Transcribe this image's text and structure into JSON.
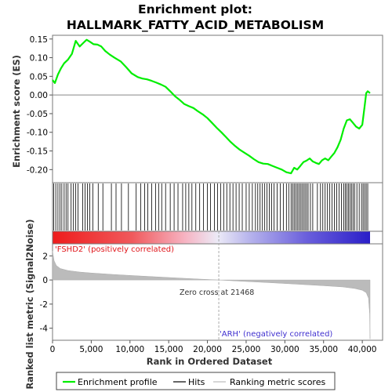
{
  "chart_data": {
    "type": "line",
    "title_line1": "Enrichment plot:",
    "title_line2": "HALLMARK_FATTY_ACID_METABOLISM",
    "ylabel_top": "Enrichment score (ES)",
    "ylabel_bottom": "Ranked list metric (Signal2Noise)",
    "xlabel": "Rank in Ordered Dataset",
    "x_range": [
      0,
      41000
    ],
    "es_ylim": [
      -0.235,
      0.16
    ],
    "metric_ylim": [
      -5.0,
      3.0
    ],
    "x_ticks": [
      0,
      5000,
      10000,
      15000,
      20000,
      25000,
      30000,
      35000,
      40000
    ],
    "x_tick_labels": [
      "0",
      "5,000",
      "10,000",
      "15,000",
      "20,000",
      "25,000",
      "30,000",
      "35,000",
      "40,000"
    ],
    "es_y_ticks": [
      0.15,
      0.1,
      0.05,
      0.0,
      -0.05,
      -0.1,
      -0.15,
      -0.2
    ],
    "es_y_tick_labels": [
      "0.15",
      "0.10",
      "0.05",
      "0.00",
      "-0.05",
      "-0.10",
      "-0.15",
      "-0.20"
    ],
    "metric_y_ticks": [
      2,
      0,
      -2,
      -4
    ],
    "metric_y_tick_labels": [
      "2",
      "0",
      "-2",
      "-4"
    ],
    "positive_label": "'FSHD2' (positively correlated)",
    "negative_label": "'ARH' (negatively correlated)",
    "zero_cross_label": "Zero cross at 21468",
    "zero_cross_rank": 21468,
    "legend": [
      {
        "key": "es",
        "label": "Enrichment profile",
        "color": "#00ee00"
      },
      {
        "key": "hits",
        "label": "Hits",
        "color": "#000000"
      },
      {
        "key": "metric",
        "label": "Ranking metric scores",
        "color": "#bbbbbb"
      }
    ],
    "series": [
      {
        "key": "es",
        "color": "#00ee00",
        "x": [
          0,
          300,
          700,
          1100,
          1500,
          2000,
          2500,
          3000,
          3500,
          4000,
          4400,
          4800,
          5300,
          5800,
          6300,
          6800,
          7400,
          8000,
          8800,
          9500,
          10200,
          11000,
          11600,
          12200,
          12800,
          13400,
          14000,
          14600,
          15200,
          15800,
          16400,
          17000,
          17600,
          18200,
          18800,
          19400,
          20000,
          20600,
          21200,
          21800,
          22400,
          23000,
          23600,
          24200,
          24800,
          25400,
          26000,
          26600,
          27200,
          27800,
          28400,
          29000,
          29600,
          30200,
          30800,
          31200,
          31600,
          32000,
          32400,
          32800,
          33200,
          33600,
          34000,
          34400,
          34800,
          35200,
          35600,
          36000,
          36400,
          36800,
          37200,
          37600,
          38000,
          38400,
          38800,
          39200,
          39600,
          40000,
          40300,
          40500,
          40700,
          41000
        ],
        "values": [
          0.04,
          0.032,
          0.055,
          0.072,
          0.085,
          0.095,
          0.11,
          0.145,
          0.13,
          0.14,
          0.148,
          0.143,
          0.136,
          0.135,
          0.13,
          0.118,
          0.108,
          0.1,
          0.09,
          0.075,
          0.058,
          0.048,
          0.044,
          0.042,
          0.038,
          0.033,
          0.028,
          0.022,
          0.01,
          -0.003,
          -0.013,
          -0.024,
          -0.03,
          -0.035,
          -0.044,
          -0.052,
          -0.062,
          -0.075,
          -0.088,
          -0.1,
          -0.113,
          -0.126,
          -0.137,
          -0.147,
          -0.155,
          -0.163,
          -0.172,
          -0.18,
          -0.184,
          -0.185,
          -0.19,
          -0.195,
          -0.2,
          -0.207,
          -0.21,
          -0.195,
          -0.2,
          -0.19,
          -0.18,
          -0.176,
          -0.17,
          -0.178,
          -0.182,
          -0.185,
          -0.175,
          -0.17,
          -0.175,
          -0.165,
          -0.155,
          -0.14,
          -0.12,
          -0.09,
          -0.068,
          -0.065,
          -0.075,
          -0.085,
          -0.09,
          -0.08,
          -0.03,
          0.005,
          0.01,
          0.005
        ]
      },
      {
        "key": "metric",
        "color": "#bbbbbb",
        "x": [
          0,
          200,
          500,
          1000,
          2000,
          3500,
          5000,
          8000,
          12000,
          16000,
          19000,
          21468,
          24000,
          28000,
          32000,
          35000,
          37500,
          39000,
          40000,
          40500,
          40800,
          40950,
          41000
        ],
        "values": [
          2.4,
          1.6,
          1.2,
          0.95,
          0.78,
          0.66,
          0.58,
          0.45,
          0.31,
          0.17,
          0.07,
          0.0,
          -0.09,
          -0.22,
          -0.36,
          -0.47,
          -0.58,
          -0.7,
          -0.85,
          -1.05,
          -1.5,
          -2.8,
          -4.9
        ]
      }
    ],
    "hits": [
      150,
      420,
      700,
      950,
      1200,
      1500,
      1750,
      2000,
      2400,
      2700,
      3000,
      3300,
      3900,
      4200,
      4500,
      4800,
      5200,
      5900,
      6500,
      7600,
      8200,
      8900,
      9800,
      10800,
      11400,
      11900,
      12300,
      12800,
      13300,
      13700,
      14100,
      14600,
      15200,
      15700,
      16200,
      16800,
      17200,
      17600,
      18000,
      18500,
      19000,
      19500,
      20000,
      20400,
      20900,
      21300,
      21700,
      22100,
      22500,
      22900,
      23300,
      23700,
      24100,
      24500,
      25000,
      25400,
      25800,
      26200,
      26500,
      26800,
      27100,
      27400,
      27700,
      28000,
      28300,
      28600,
      29000,
      29400,
      29800,
      30200,
      30500,
      30800,
      31000,
      31200,
      31400,
      31600,
      31800,
      32000,
      32200,
      32400,
      32600,
      32800,
      33000,
      33300,
      33600,
      34200,
      34600,
      34900,
      35200,
      35500,
      35800,
      36100,
      36400,
      36700,
      37000,
      37300,
      37600,
      37800,
      38000,
      38200,
      38400,
      38600,
      38800,
      39000,
      39300,
      39600,
      39900,
      40100,
      40300,
      40500,
      40700
    ]
  }
}
